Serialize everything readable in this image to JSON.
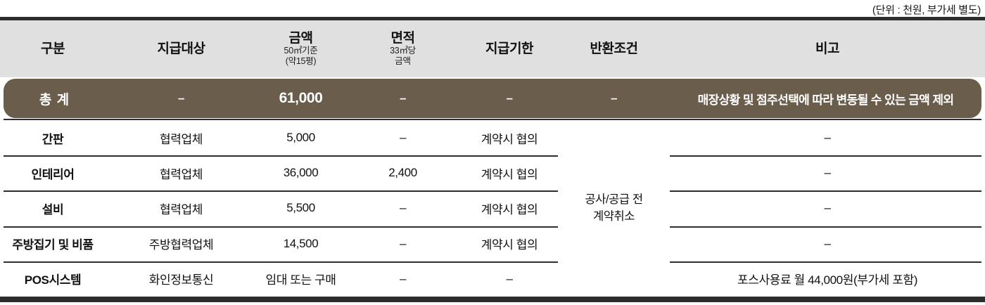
{
  "unit_note": "(단위 : 천원, 부가세 별도)",
  "table": {
    "columns": [
      {
        "label": "구분",
        "sub": []
      },
      {
        "label": "지급대상",
        "sub": []
      },
      {
        "label": "금액",
        "sub": [
          "50㎡기준",
          "(약15평)"
        ]
      },
      {
        "label": "면적",
        "sub": [
          "33㎡당",
          "금액"
        ]
      },
      {
        "label": "지급기한",
        "sub": []
      },
      {
        "label": "반환조건",
        "sub": []
      },
      {
        "label": "비고",
        "sub": []
      }
    ],
    "total_row": {
      "category": "총 계",
      "target": "–",
      "amount": "61,000",
      "area": "–",
      "deadline": "–",
      "refund": "–",
      "note": "매장상황 및 점주선택에 따라 변동될 수 있는 금액 제외"
    },
    "rows": [
      {
        "category": "간판",
        "target": "협력업체",
        "amount": "5,000",
        "area": "–",
        "deadline": "계약시 협의",
        "note": "–"
      },
      {
        "category": "인테리어",
        "target": "협력업체",
        "amount": "36,000",
        "area": "2,400",
        "deadline": "계약시 협의",
        "note": "–"
      },
      {
        "category": "설비",
        "target": "협력업체",
        "amount": "5,500",
        "area": "–",
        "deadline": "계약시 협의",
        "note": "–"
      },
      {
        "category": "주방집기 및 비품",
        "target": "주방협력업체",
        "amount": "14,500",
        "area": "–",
        "deadline": "계약시 협의",
        "note": "–"
      },
      {
        "category": "POS시스템",
        "target": "화인정보통신",
        "amount": "임대 또는 구매",
        "area": "–",
        "deadline": "–",
        "note": "포스사용료 월 44,000원(부가세 포함)"
      }
    ],
    "merged_refund": {
      "line1": "공사/공급 전",
      "line2": "계약취소"
    },
    "colors": {
      "accent_brown": "#6b5d4c",
      "header_bg": "#e0e0e0",
      "border_dark": "#2d2d2d"
    }
  }
}
